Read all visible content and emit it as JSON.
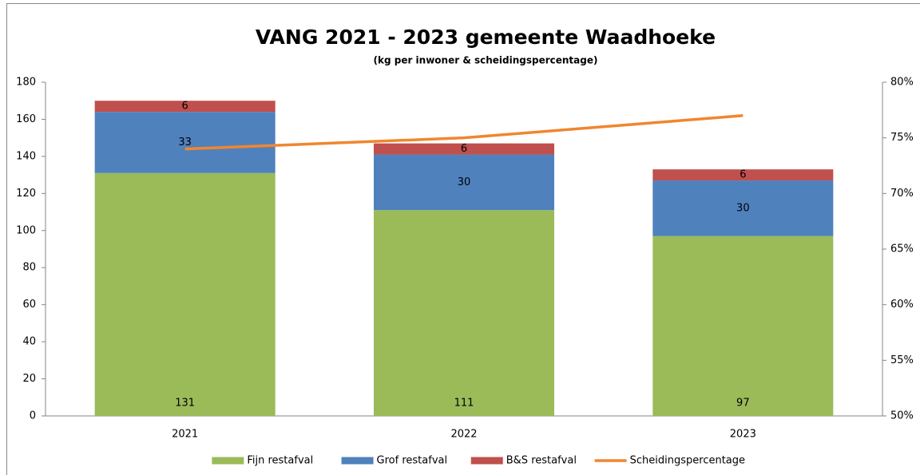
{
  "chart_data": {
    "type": "bar",
    "stacked": true,
    "title": "VANG 2021 - 2023 gemeente Waadhoeke",
    "subtitle": "(kg per inwoner & scheidingspercentage)",
    "categories": [
      "2021",
      "2022",
      "2023"
    ],
    "series": [
      {
        "name": "Fijn restafval",
        "color": "#9bbb59",
        "values": [
          131,
          111,
          97
        ]
      },
      {
        "name": "Grof restafval",
        "color": "#4f81bd",
        "values": [
          33,
          30,
          30
        ]
      },
      {
        "name": "B&S restafval",
        "color": "#c0504d",
        "values": [
          6,
          6,
          6
        ]
      },
      {
        "name": "Scheidingspercentage",
        "color": "#f0862f",
        "values": [
          74,
          75,
          77
        ],
        "axis": "y2",
        "type": "line"
      }
    ],
    "ylim": [
      0,
      180
    ],
    "yticks": [
      0,
      20,
      40,
      60,
      80,
      100,
      120,
      140,
      160,
      180
    ],
    "y2lim": [
      50,
      80
    ],
    "y2ticks": [
      {
        "value": 50,
        "label": "50%"
      },
      {
        "value": 55,
        "label": "55%"
      },
      {
        "value": 60,
        "label": "60%"
      },
      {
        "value": 65,
        "label": "65%"
      },
      {
        "value": 70,
        "label": "70%"
      },
      {
        "value": 75,
        "label": "75%"
      },
      {
        "value": 80,
        "label": "80%"
      }
    ],
    "data_labels": true,
    "grid": false,
    "legend": "bottom"
  }
}
